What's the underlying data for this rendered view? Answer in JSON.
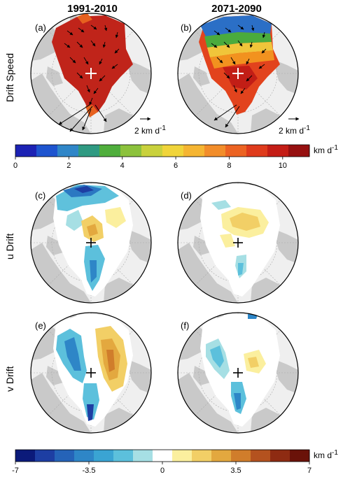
{
  "columns": [
    "1991-2010",
    "2071-2090"
  ],
  "rows": [
    "Drift Speed",
    "u Drift",
    "v Drift"
  ],
  "panels": [
    "(a)",
    "(b)",
    "(c)",
    "(d)",
    "(e)",
    "(f)"
  ],
  "scale_arrow_label": "2 km d",
  "scale_arrow_sup": "-1",
  "colorbar_speed": {
    "unit": "km d",
    "unit_sup": "-1",
    "ticks": [
      "0",
      "2",
      "4",
      "6",
      "8",
      "10"
    ],
    "min": 0,
    "max": 11,
    "colors": [
      "#1c22b4",
      "#1e54cf",
      "#2f86c8",
      "#2f9a82",
      "#4fae3c",
      "#8cc23c",
      "#c9d13c",
      "#f0d43a",
      "#f5b532",
      "#f28d2a",
      "#ec6322",
      "#df3b1c",
      "#c41d16",
      "#961010"
    ]
  },
  "colorbar_drift": {
    "unit": "km d",
    "unit_sup": "-1",
    "ticks": [
      "-7",
      "-3.5",
      "0",
      "3.5",
      "7"
    ],
    "min": -7,
    "max": 7,
    "colors": [
      "#0b1a7a",
      "#1d3ea3",
      "#2563b8",
      "#2e86c7",
      "#3aa4d3",
      "#5cc0dc",
      "#a6dfe4",
      "#ffffff",
      "#fbef9e",
      "#f2cf66",
      "#e3a83f",
      "#d07d2b",
      "#b4521f",
      "#8e2b12",
      "#6a1209"
    ]
  }
}
